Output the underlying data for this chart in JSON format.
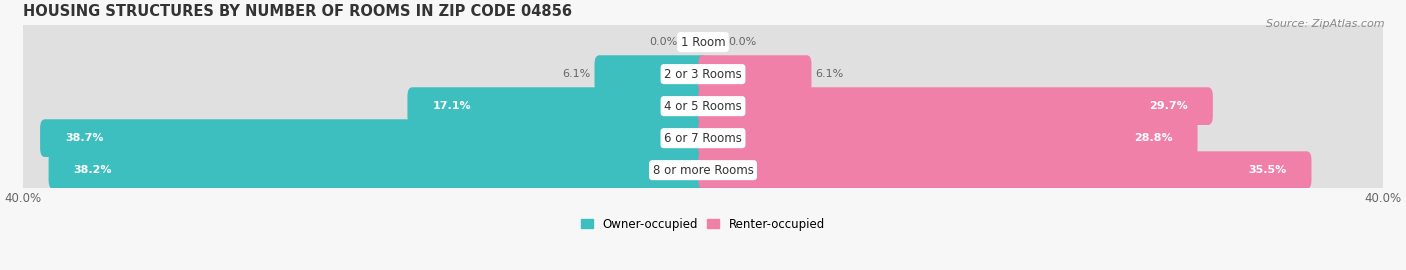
{
  "title": "HOUSING STRUCTURES BY NUMBER OF ROOMS IN ZIP CODE 04856",
  "source": "Source: ZipAtlas.com",
  "categories": [
    "1 Room",
    "2 or 3 Rooms",
    "4 or 5 Rooms",
    "6 or 7 Rooms",
    "8 or more Rooms"
  ],
  "owner_values": [
    0.0,
    6.1,
    17.1,
    38.7,
    38.2
  ],
  "renter_values": [
    0.0,
    6.1,
    29.7,
    28.8,
    35.5
  ],
  "owner_color": "#3DBFBF",
  "renter_color": "#F080A8",
  "label_color_dark": "#666666",
  "background_color": "#f7f7f7",
  "row_bg_color": "#ececec",
  "row_stripe_color": "#f2f2f2",
  "axis_max": 40.0,
  "bar_height": 0.62,
  "title_fontsize": 10.5,
  "source_fontsize": 8,
  "tick_fontsize": 8.5,
  "bar_label_fontsize": 8,
  "cat_label_fontsize": 8.5
}
